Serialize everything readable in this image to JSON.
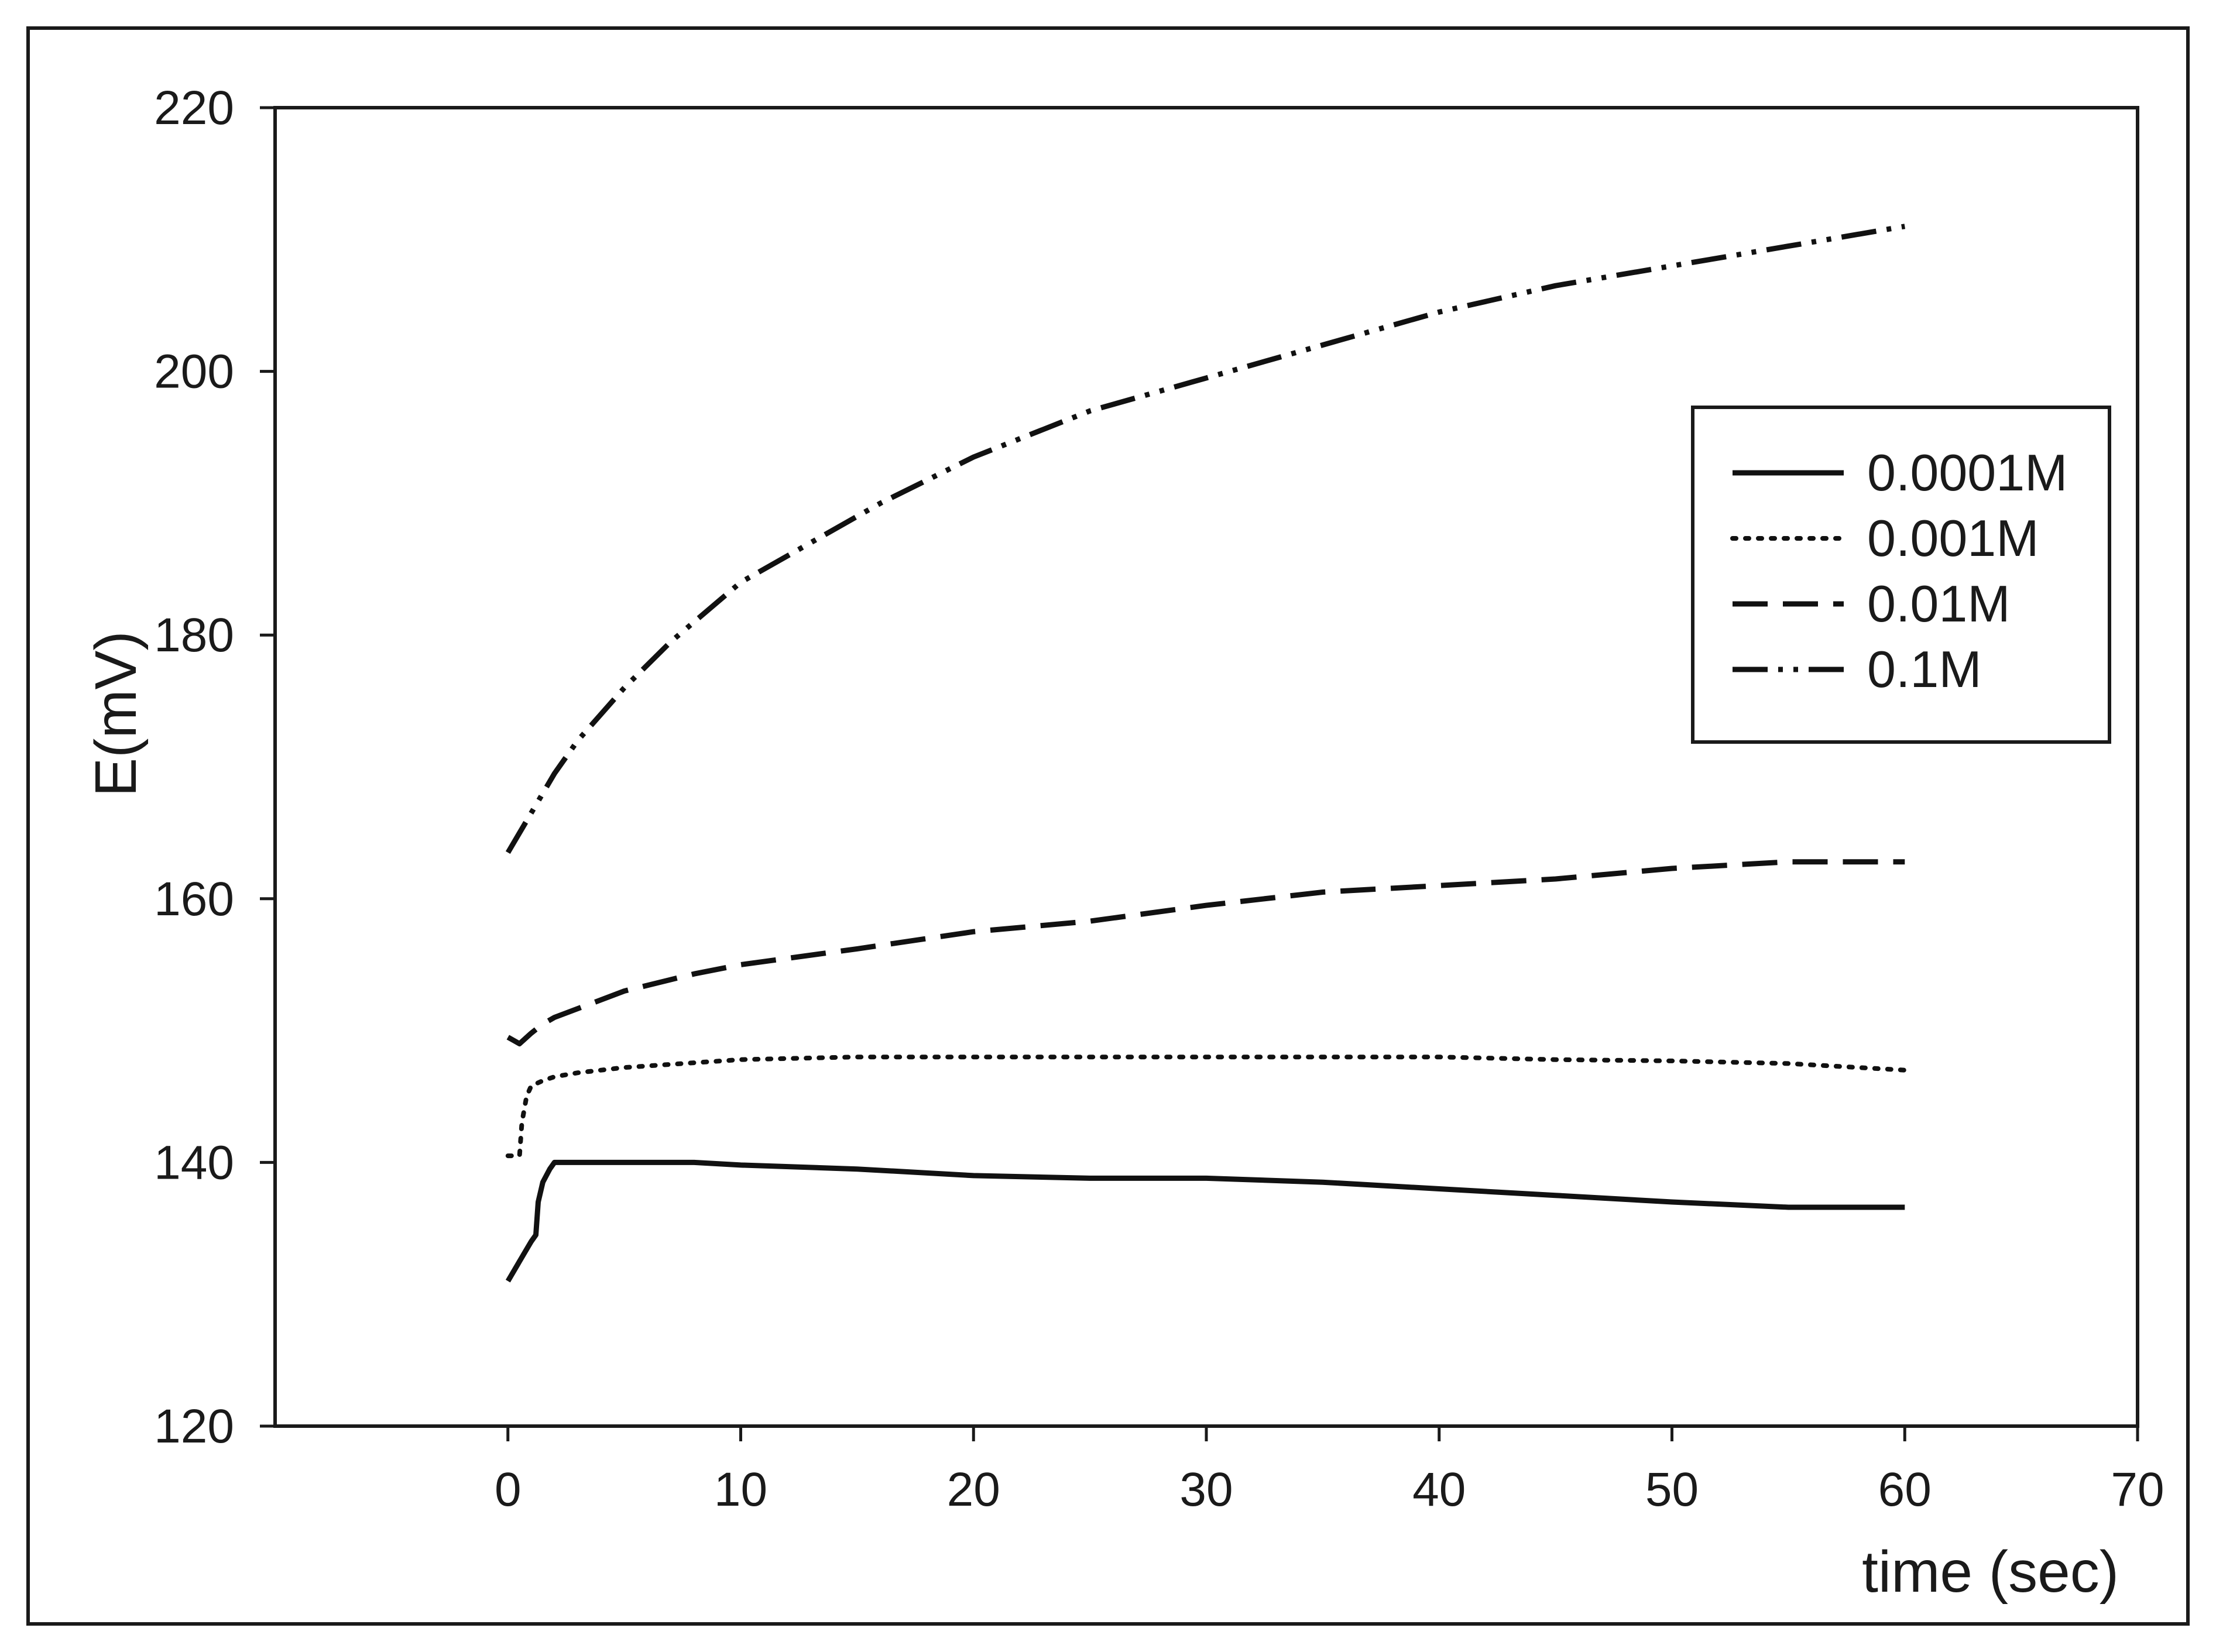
{
  "chart_data": {
    "type": "line",
    "title": "",
    "xlabel": "time (sec)",
    "ylabel": "E(mV)",
    "xlim": [
      -10,
      70
    ],
    "ylim": [
      120,
      220
    ],
    "xticks": [
      0,
      10,
      20,
      30,
      40,
      50,
      60,
      70
    ],
    "yticks": [
      120,
      140,
      160,
      180,
      200,
      220
    ],
    "grid": false,
    "legend_position": "right",
    "series": [
      {
        "name": "0.0001M",
        "style": "solid",
        "color": "#111111",
        "x": [
          0,
          0.5,
          1,
          1.2,
          1.3,
          1.5,
          1.8,
          2,
          3,
          5,
          8,
          10,
          15,
          20,
          25,
          30,
          35,
          40,
          45,
          50,
          55,
          60
        ],
        "y": [
          131,
          132.5,
          134,
          134.5,
          137,
          138.5,
          139.5,
          140,
          140,
          140,
          140,
          139.8,
          139.5,
          139,
          138.8,
          138.8,
          138.5,
          138,
          137.5,
          137,
          136.6,
          136.6
        ]
      },
      {
        "name": "0.001M",
        "style": "dotted",
        "color": "#111111",
        "x": [
          0,
          0.5,
          0.6,
          0.8,
          1,
          1.5,
          2,
          3,
          5,
          10,
          15,
          20,
          25,
          30,
          35,
          40,
          45,
          50,
          55,
          60
        ],
        "y": [
          140.5,
          140.5,
          143,
          145,
          145.8,
          146.2,
          146.5,
          146.8,
          147.2,
          147.8,
          148,
          148,
          148,
          148,
          148,
          148,
          147.8,
          147.7,
          147.5,
          147
        ]
      },
      {
        "name": "0.01M",
        "style": "dashed",
        "color": "#111111",
        "x": [
          0,
          0.5,
          1,
          1.5,
          2,
          5,
          8,
          10,
          15,
          20,
          25,
          30,
          35,
          40,
          45,
          50,
          55,
          60
        ],
        "y": [
          149.5,
          149,
          149.8,
          150.5,
          151,
          153,
          154.3,
          155,
          156.2,
          157.5,
          158.3,
          159.5,
          160.5,
          161,
          161.5,
          162.3,
          162.8,
          162.8
        ]
      },
      {
        "name": "0.1M",
        "style": "dash-dot-dot",
        "color": "#111111",
        "x": [
          0,
          1,
          2,
          3,
          5,
          7,
          10,
          13,
          16,
          20,
          25,
          30,
          35,
          40,
          45,
          50,
          55,
          60
        ],
        "y": [
          163.5,
          166.5,
          169.5,
          172,
          176,
          179.5,
          184,
          187,
          190,
          193.5,
          197,
          199.5,
          202,
          204.5,
          206.5,
          208,
          209.5,
          211
        ]
      }
    ]
  }
}
